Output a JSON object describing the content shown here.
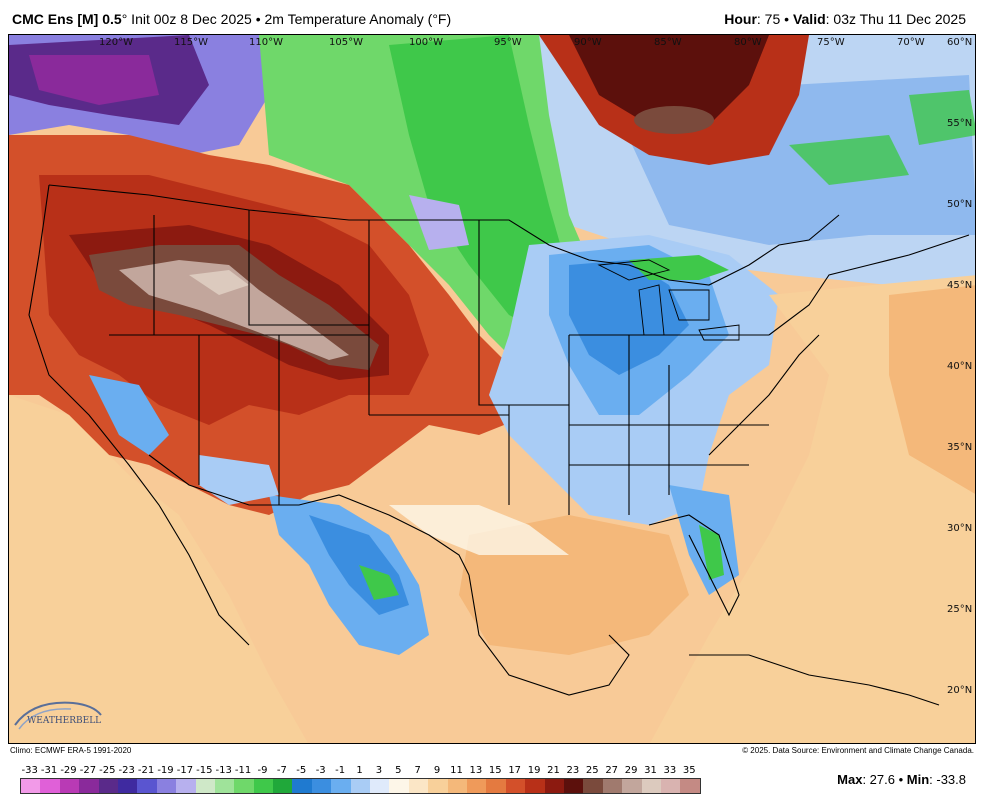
{
  "header": {
    "model": "CMC Ens [M] 0.5",
    "degree": "°",
    "init": " Init 00z 8 Dec 2025 • 2m Temperature Anomaly (°F)",
    "hour_label": "Hour",
    "hour_value": ": 75 • ",
    "valid_label": "Valid",
    "valid_value": ": 03z Thu 11 Dec 2025"
  },
  "map": {
    "lon_labels": [
      "120°W",
      "115°W",
      "110°W",
      "105°W",
      "100°W",
      "95°W",
      "90°W",
      "85°W",
      "80°W",
      "75°W",
      "70°W"
    ],
    "lat_labels": [
      "60°N",
      "55°N",
      "50°N",
      "45°N",
      "40°N",
      "35°N",
      "30°N",
      "25°N",
      "20°N"
    ],
    "logo_text": "WEATHERBELL"
  },
  "footer": {
    "climo": "Climo: ECMWF ERA-5 1991-2020",
    "copyright": "© 2025. Data Source: Environment and Climate Change Canada.",
    "max_label": "Max",
    "max_value": ": 27.6 • ",
    "min_label": "Min",
    "min_value": ": -33.8"
  },
  "colorbar": {
    "labels": [
      "-33",
      "-31",
      "-29",
      "-27",
      "-25",
      "-23",
      "-21",
      "-19",
      "-17",
      "-15",
      "-13",
      "-11",
      "-9",
      "-7",
      "-5",
      "-3",
      "-1",
      "1",
      "3",
      "5",
      "7",
      "9",
      "11",
      "13",
      "15",
      "17",
      "19",
      "21",
      "23",
      "25",
      "27",
      "29",
      "31",
      "33",
      "35"
    ],
    "colors": [
      "#f29ae8",
      "#e060d8",
      "#b93ab5",
      "#8a2a9b",
      "#5a2a8a",
      "#3f2aa0",
      "#5a55d0",
      "#8a80e0",
      "#b7b0ee",
      "#cfe8c8",
      "#9fe39a",
      "#6fd86a",
      "#3fc84a",
      "#20a83a",
      "#1f7ad0",
      "#3b8ee0",
      "#6aaef0",
      "#a9ccf5",
      "#dfeafb",
      "#fdf6e8",
      "#fbe6c6",
      "#f8d09a",
      "#f4b87a",
      "#ef9a5a",
      "#e47a40",
      "#d3502a",
      "#b83018",
      "#8c1a10",
      "#5c100c",
      "#7a4a3c",
      "#a07a6e",
      "#c2a69c",
      "#dccabe",
      "#d9b3b0",
      "#c48a84"
    ]
  }
}
